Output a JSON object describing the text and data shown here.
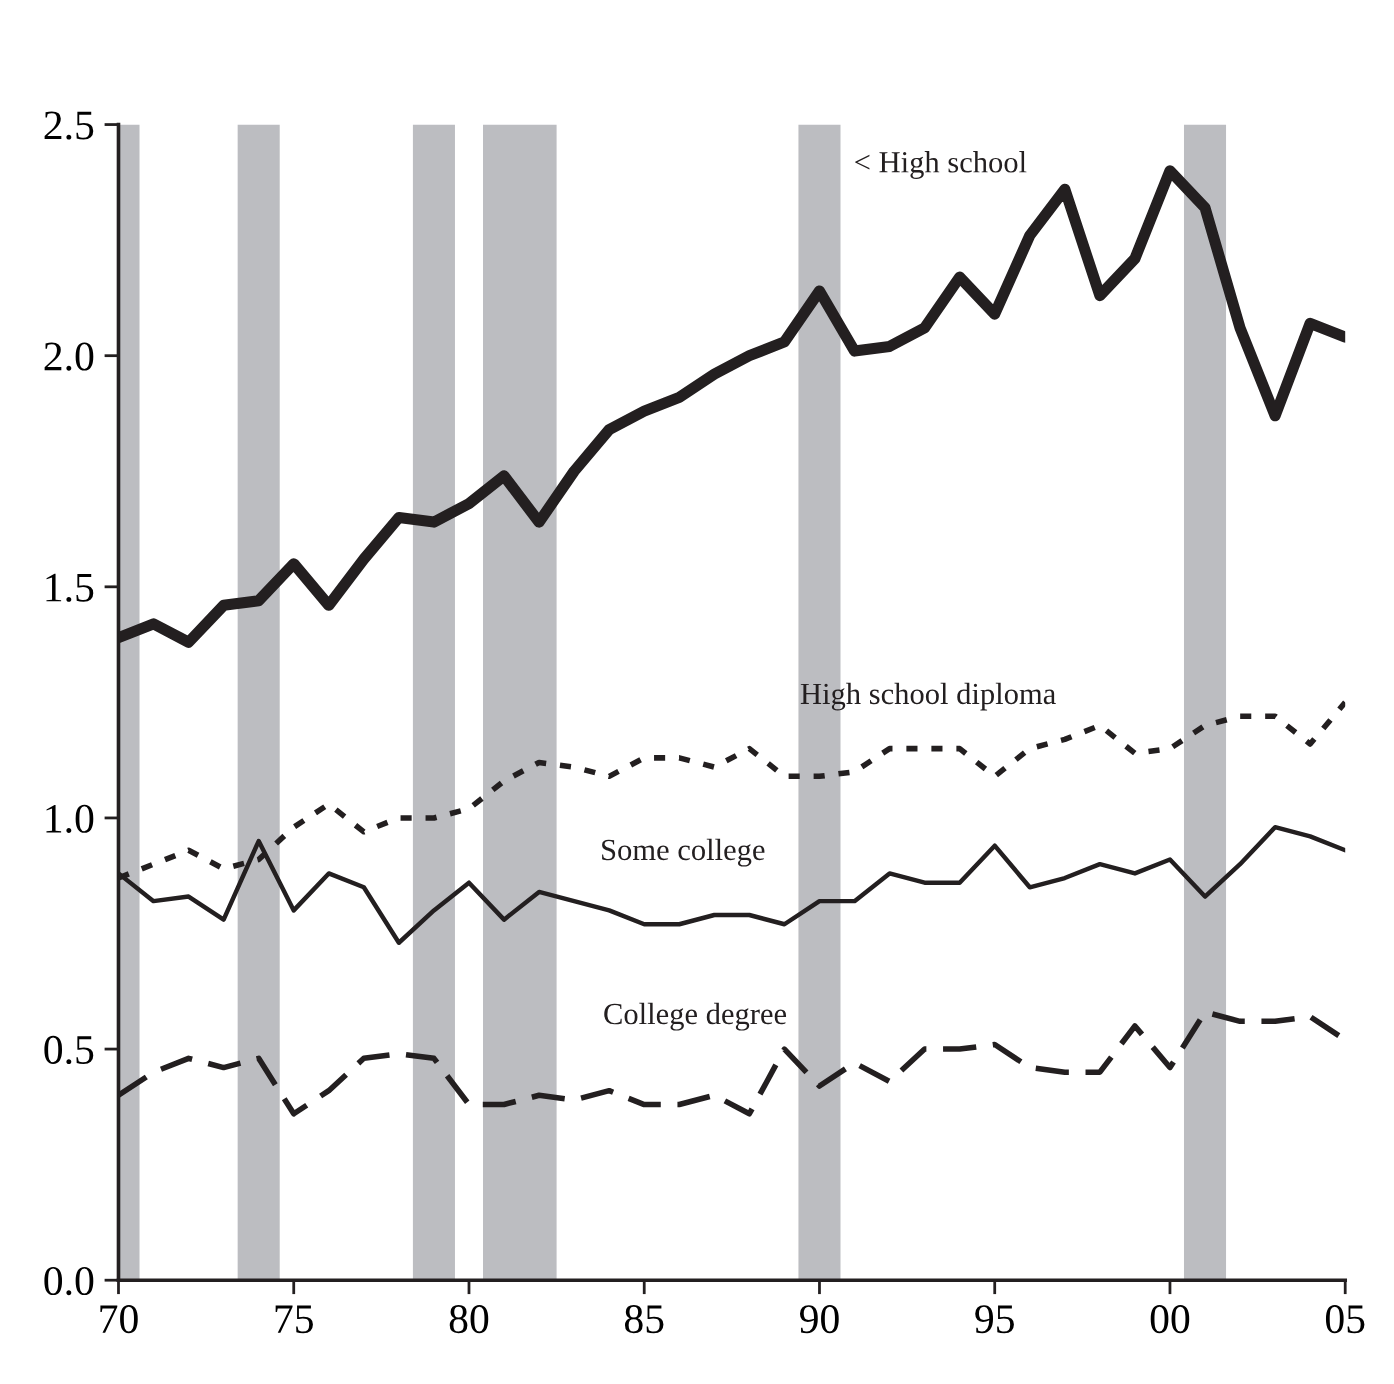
{
  "chart_data": {
    "type": "line",
    "x": [
      1970,
      1971,
      1972,
      1973,
      1974,
      1975,
      1976,
      1977,
      1978,
      1979,
      1980,
      1981,
      1982,
      1983,
      1984,
      1985,
      1986,
      1987,
      1988,
      1989,
      1990,
      1991,
      1992,
      1993,
      1994,
      1995,
      1996,
      1997,
      1998,
      1999,
      2000,
      2001,
      2002,
      2003,
      2004,
      2005
    ],
    "series": [
      {
        "name": "< High school",
        "color": "#231f20",
        "line_style": "solid",
        "values": [
          1.39,
          1.42,
          1.38,
          1.46,
          1.47,
          1.55,
          1.46,
          1.56,
          1.65,
          1.64,
          1.68,
          1.74,
          1.64,
          1.75,
          1.84,
          1.88,
          1.91,
          1.96,
          2.0,
          2.03,
          2.14,
          2.01,
          2.02,
          2.06,
          2.17,
          2.09,
          2.26,
          2.36,
          2.13,
          2.21,
          2.4,
          2.32,
          2.06,
          1.87,
          2.07,
          2.04
        ]
      },
      {
        "name": "High school diploma",
        "color": "#231f20",
        "line_style": "dotted",
        "values": [
          0.87,
          0.9,
          0.93,
          0.89,
          0.91,
          0.98,
          1.03,
          0.97,
          1.0,
          1.0,
          1.02,
          1.08,
          1.12,
          1.11,
          1.09,
          1.13,
          1.13,
          1.11,
          1.15,
          1.09,
          1.09,
          1.1,
          1.15,
          1.15,
          1.15,
          1.09,
          1.15,
          1.17,
          1.2,
          1.14,
          1.15,
          1.2,
          1.22,
          1.22,
          1.16,
          1.25
        ]
      },
      {
        "name": "Some college",
        "color": "#231f20",
        "line_style": "solid",
        "values": [
          0.88,
          0.82,
          0.83,
          0.78,
          0.95,
          0.8,
          0.88,
          0.85,
          0.73,
          0.8,
          0.86,
          0.78,
          0.84,
          0.82,
          0.8,
          0.77,
          0.77,
          0.79,
          0.79,
          0.77,
          0.82,
          0.82,
          0.88,
          0.86,
          0.86,
          0.94,
          0.85,
          0.87,
          0.9,
          0.88,
          0.91,
          0.83,
          0.9,
          0.98,
          0.96,
          0.93
        ]
      },
      {
        "name": "College degree",
        "color": "#231f20",
        "line_style": "dashed",
        "values": [
          0.4,
          0.45,
          0.48,
          0.46,
          0.48,
          0.36,
          0.41,
          0.48,
          0.49,
          0.48,
          0.38,
          0.38,
          0.4,
          0.39,
          0.41,
          0.38,
          0.38,
          0.4,
          0.36,
          0.5,
          0.42,
          0.47,
          0.43,
          0.5,
          0.5,
          0.51,
          0.46,
          0.45,
          0.45,
          0.55,
          0.46,
          0.58,
          0.56,
          0.56,
          0.57,
          0.52
        ]
      }
    ],
    "bands": [
      {
        "axis": "x",
        "from": 1970.0,
        "to": 1970.6,
        "color": "#bcbdc1"
      },
      {
        "axis": "x",
        "from": 1973.4,
        "to": 1974.6,
        "color": "#bcbdc1"
      },
      {
        "axis": "x",
        "from": 1978.4,
        "to": 1979.6,
        "color": "#bcbdc1"
      },
      {
        "axis": "x",
        "from": 1980.4,
        "to": 1982.5,
        "color": "#bcbdc1"
      },
      {
        "axis": "x",
        "from": 1989.4,
        "to": 1990.6,
        "color": "#bcbdc1"
      },
      {
        "axis": "x",
        "from": 2000.4,
        "to": 2001.6,
        "color": "#bcbdc1"
      }
    ],
    "xlim": [
      1970,
      2005
    ],
    "xticks": [
      {
        "value": 1970,
        "label": "70"
      },
      {
        "value": 1975,
        "label": "75"
      },
      {
        "value": 1980,
        "label": "80"
      },
      {
        "value": 1985,
        "label": "85"
      },
      {
        "value": 1990,
        "label": "90"
      },
      {
        "value": 1995,
        "label": "95"
      },
      {
        "value": 2000,
        "label": "00"
      },
      {
        "value": 2005,
        "label": "05"
      }
    ],
    "ylim": [
      0,
      2.5
    ],
    "yticks": [
      {
        "value": 0,
        "label": "0.0"
      },
      {
        "value": 0.5,
        "label": "0.5"
      },
      {
        "value": 1.0,
        "label": "1.0"
      },
      {
        "value": 1.5,
        "label": "1.5"
      },
      {
        "value": 2.0,
        "label": "2.0"
      },
      {
        "value": 2.5,
        "label": "2.5"
      }
    ],
    "grid": false,
    "legend": false,
    "marker": "none"
  }
}
